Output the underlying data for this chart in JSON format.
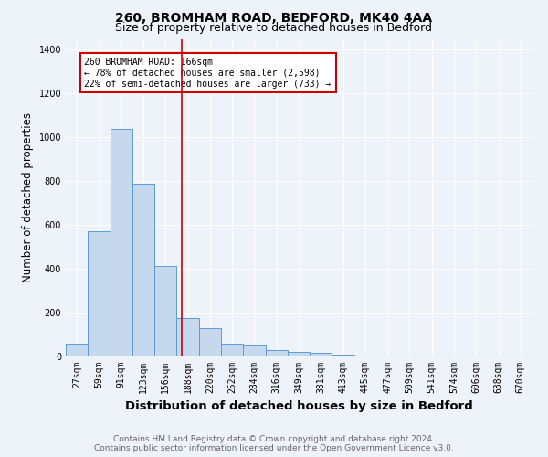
{
  "title_line1": "260, BROMHAM ROAD, BEDFORD, MK40 4AA",
  "title_line2": "Size of property relative to detached houses in Bedford",
  "xlabel": "Distribution of detached houses by size in Bedford",
  "ylabel": "Number of detached properties",
  "categories": [
    "27sqm",
    "59sqm",
    "91sqm",
    "123sqm",
    "156sqm",
    "188sqm",
    "220sqm",
    "252sqm",
    "284sqm",
    "316sqm",
    "349sqm",
    "381sqm",
    "413sqm",
    "445sqm",
    "477sqm",
    "509sqm",
    "541sqm",
    "574sqm",
    "606sqm",
    "638sqm",
    "670sqm"
  ],
  "values": [
    57,
    570,
    1040,
    790,
    415,
    175,
    130,
    60,
    50,
    30,
    20,
    15,
    10,
    5,
    3,
    0,
    0,
    0,
    0,
    0,
    0
  ],
  "bar_color": "#c5d8ed",
  "bar_edge_color": "#5b9bd5",
  "redline_x": 4.72,
  "annotation_line1": "260 BROMHAM ROAD: 166sqm",
  "annotation_line2": "← 78% of detached houses are smaller (2,598)",
  "annotation_line3": "22% of semi-detached houses are larger (733) →",
  "annotation_box_color": "#ffffff",
  "annotation_box_edge": "#cc0000",
  "redline_color": "#cc0000",
  "ylim": [
    0,
    1450
  ],
  "yticks": [
    0,
    200,
    400,
    600,
    800,
    1000,
    1200,
    1400
  ],
  "footer_line1": "Contains HM Land Registry data © Crown copyright and database right 2024.",
  "footer_line2": "Contains public sector information licensed under the Open Government Licence v3.0.",
  "background_color": "#eef2f9",
  "grid_color": "#ffffff",
  "title_fontsize": 10,
  "subtitle_fontsize": 9,
  "axis_label_fontsize": 8.5,
  "tick_fontsize": 7,
  "footer_fontsize": 6.5
}
